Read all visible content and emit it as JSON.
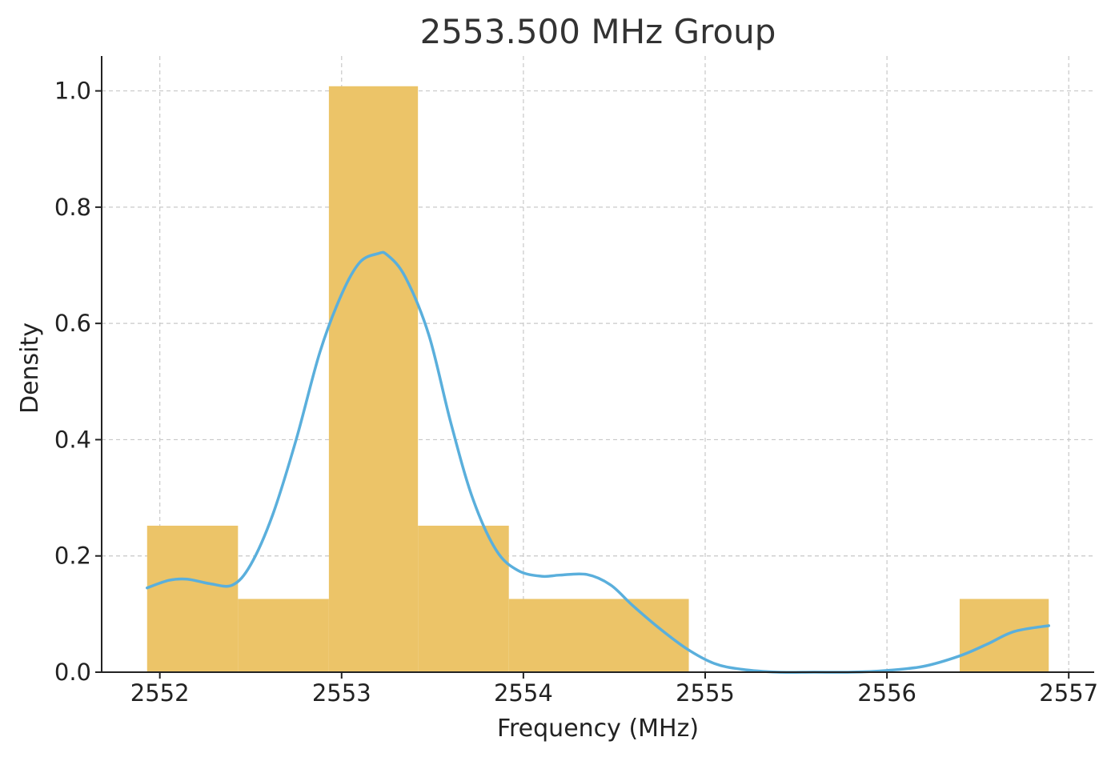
{
  "chart_data": {
    "type": "histogram",
    "title": "2553.500 MHz Group",
    "xlabel": "Frequency (MHz)",
    "ylabel": "Density",
    "xlim": [
      2551.68,
      2557.14
    ],
    "ylim": [
      0,
      1.06
    ],
    "xticks": [
      2552,
      2553,
      2554,
      2555,
      2556,
      2557
    ],
    "xtick_labels": [
      "2552",
      "2553",
      "2554",
      "2555",
      "2556",
      "2557"
    ],
    "yticks": [
      0.0,
      0.2,
      0.4,
      0.6,
      0.8,
      1.0
    ],
    "ytick_labels": [
      "0.0",
      "0.2",
      "0.4",
      "0.6",
      "0.8",
      "1.0"
    ],
    "grid": true,
    "bar_color": "#ecc468",
    "line_color": "#5aafdc",
    "bins": [
      {
        "start": 2551.93,
        "end": 2552.43,
        "density": 0.252
      },
      {
        "start": 2552.43,
        "end": 2552.93,
        "density": 0.126
      },
      {
        "start": 2552.93,
        "end": 2553.42,
        "density": 1.008
      },
      {
        "start": 2553.42,
        "end": 2553.92,
        "density": 0.252
      },
      {
        "start": 2553.92,
        "end": 2554.41,
        "density": 0.126
      },
      {
        "start": 2554.41,
        "end": 2554.91,
        "density": 0.126
      },
      {
        "start": 2554.91,
        "end": 2555.4,
        "density": 0.0
      },
      {
        "start": 2555.4,
        "end": 2555.9,
        "density": 0.0
      },
      {
        "start": 2555.9,
        "end": 2556.4,
        "density": 0.0
      },
      {
        "start": 2556.4,
        "end": 2556.89,
        "density": 0.126
      }
    ],
    "kde": {
      "x": [
        2551.93,
        2552.05,
        2552.15,
        2552.28,
        2552.4,
        2552.5,
        2552.62,
        2552.75,
        2552.88,
        2553.0,
        2553.1,
        2553.2,
        2553.25,
        2553.35,
        2553.48,
        2553.6,
        2553.72,
        2553.85,
        2553.97,
        2554.1,
        2554.2,
        2554.35,
        2554.48,
        2554.6,
        2554.75,
        2554.9,
        2555.05,
        2555.2,
        2555.4,
        2555.6,
        2555.8,
        2556.0,
        2556.2,
        2556.4,
        2556.55,
        2556.7,
        2556.89
      ],
      "y": [
        0.145,
        0.158,
        0.16,
        0.152,
        0.15,
        0.185,
        0.27,
        0.4,
        0.55,
        0.65,
        0.705,
        0.72,
        0.718,
        0.68,
        0.58,
        0.43,
        0.3,
        0.21,
        0.175,
        0.165,
        0.167,
        0.168,
        0.15,
        0.115,
        0.075,
        0.04,
        0.015,
        0.005,
        0.0,
        0.0,
        0.0,
        0.003,
        0.01,
        0.028,
        0.048,
        0.07,
        0.08
      ]
    }
  }
}
